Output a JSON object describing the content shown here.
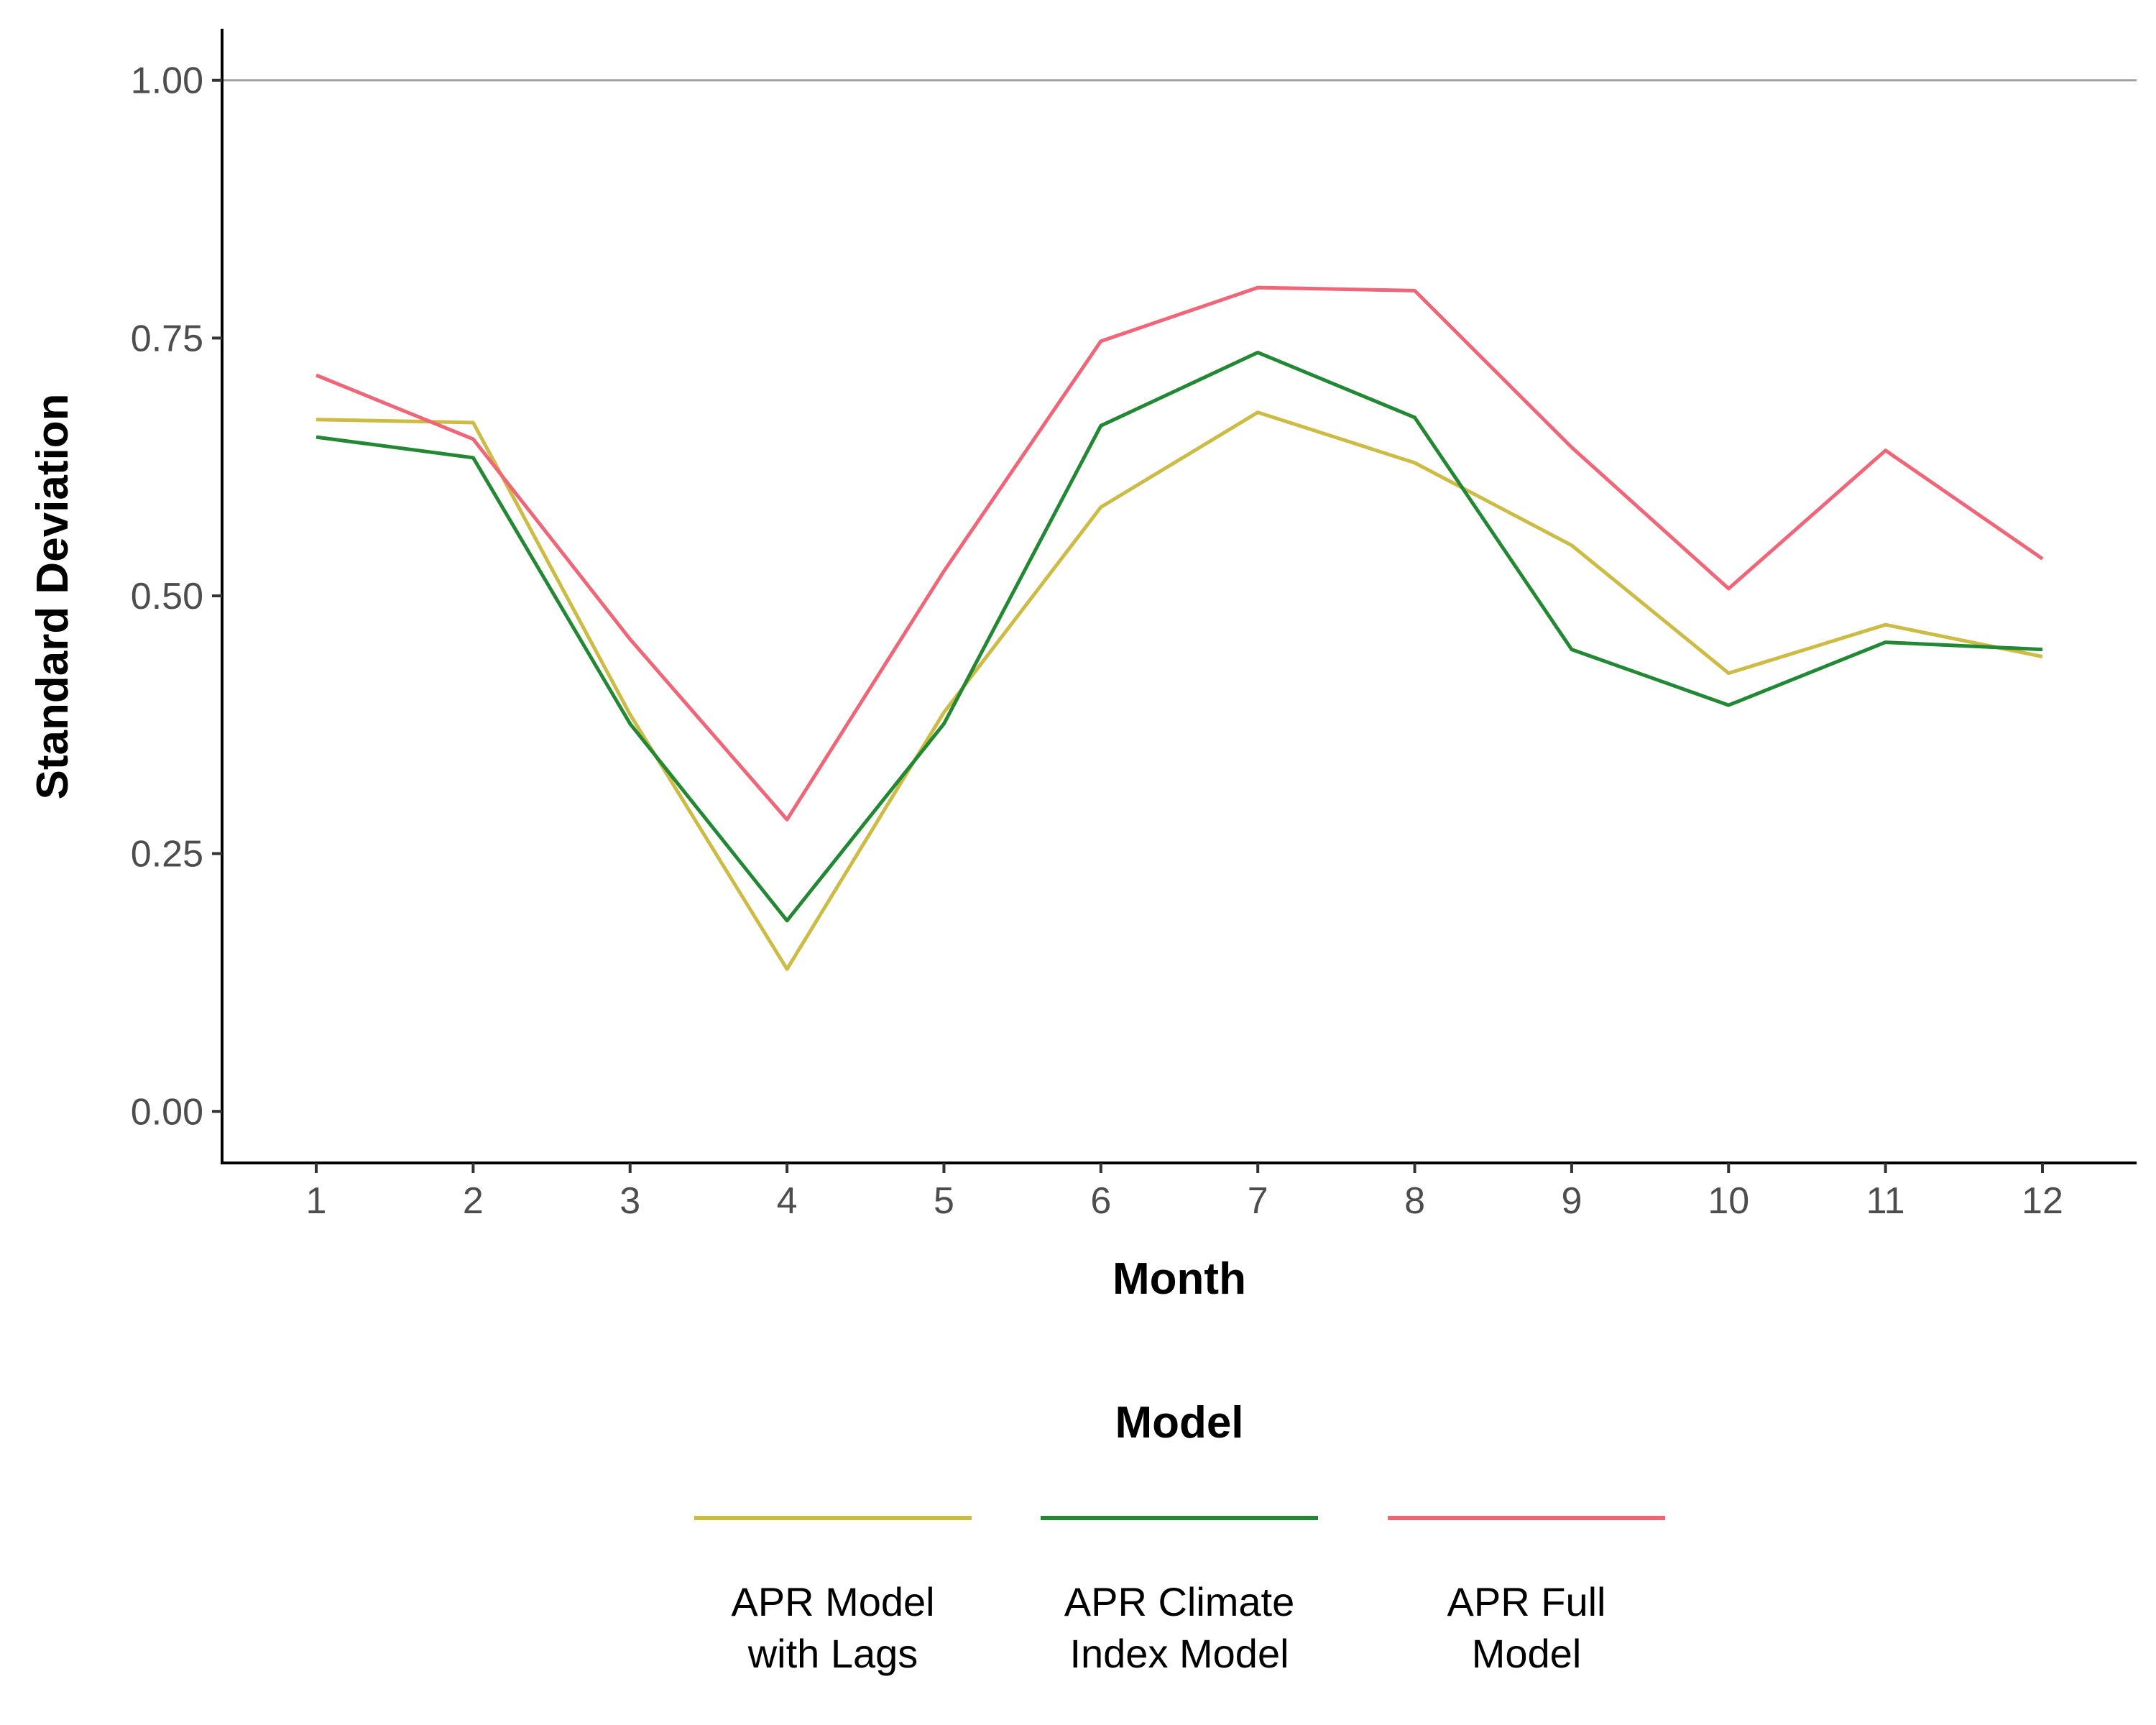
{
  "chart_data": {
    "type": "line",
    "title": "",
    "xlabel": "Month",
    "ylabel": "Standard Deviation",
    "x": [
      1,
      2,
      3,
      4,
      5,
      6,
      7,
      8,
      9,
      10,
      11,
      12
    ],
    "x_tick_labels": [
      "1",
      "2",
      "3",
      "4",
      "5",
      "6",
      "7",
      "8",
      "9",
      "10",
      "11",
      "12"
    ],
    "y_tick_labels": [
      "0.00",
      "0.25",
      "0.50",
      "0.75",
      "1.00"
    ],
    "y_ticks": [
      0,
      0.25,
      0.5,
      0.75,
      1.0
    ],
    "xlim": [
      0.4,
      12.6
    ],
    "ylim": [
      -0.05,
      1.05
    ],
    "reference_line": 1.0,
    "grid": false,
    "legend": {
      "title": "Model",
      "placement": "bottom"
    },
    "series": [
      {
        "name": "APR Model with Lags",
        "label_lines": [
          "APR Model",
          "with Lags"
        ],
        "color": "#CCBB44",
        "values": [
          0.671,
          0.668,
          0.385,
          0.138,
          0.387,
          0.586,
          0.678,
          0.629,
          0.549,
          0.425,
          0.472,
          0.441
        ]
      },
      {
        "name": "APR Climate Index Model",
        "label_lines": [
          "APR Climate",
          "Index Model"
        ],
        "color": "#228833",
        "values": [
          0.654,
          0.634,
          0.376,
          0.185,
          0.376,
          0.665,
          0.736,
          0.673,
          0.448,
          0.394,
          0.455,
          0.448
        ]
      },
      {
        "name": "APR Full Model",
        "label_lines": [
          "APR Full",
          "Model"
        ],
        "color": "#EE6677",
        "values": [
          0.714,
          0.652,
          0.458,
          0.283,
          0.524,
          0.747,
          0.799,
          0.796,
          0.644,
          0.507,
          0.641,
          0.536
        ]
      }
    ]
  }
}
